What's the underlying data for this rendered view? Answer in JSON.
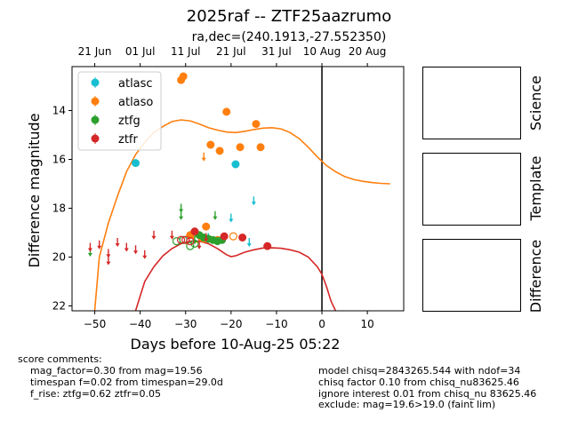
{
  "title": "2025raf -- ZTF25aazrumo",
  "subtitle": "ra,dec=(240.1913,-27.552350)",
  "side_panels": [
    "Science",
    "Template",
    "Difference"
  ],
  "comments_left": {
    "heading": "score comments:",
    "lines": [
      "mag_factor=0.30 from mag=19.56",
      "timespan f=0.02 from timespan=29.0d",
      "f_rise: ztfg=0.62 ztfr=0.05"
    ]
  },
  "comments_right": [
    "model chisq=2843265.544 with ndof=34",
    "chisq factor 0.10 from chisq_nu83625.46",
    "ignore interest 0.01 from chisq_nu 83625.46",
    "exclude: mag=19.6>19.0 (faint lim)"
  ],
  "colors": {
    "atlasc": "#17becf",
    "atlaso": "#ff7f0e",
    "ztfg": "#2ca02c",
    "ztfr": "#d62728"
  },
  "chart_data": {
    "type": "scatter",
    "xlabel": "Days before 10-Aug-25 05:22",
    "ylabel": "Difference magnitude",
    "xlim": [
      -55,
      18
    ],
    "ylim": [
      22.2,
      12.2
    ],
    "x_ticks": [
      -50,
      -40,
      -30,
      -20,
      -10,
      0,
      10
    ],
    "y_ticks": [
      14,
      16,
      18,
      20,
      22
    ],
    "top_axis_ticks": [
      {
        "x": -50,
        "label": "21 Jun"
      },
      {
        "x": -40,
        "label": "01 Jul"
      },
      {
        "x": -30,
        "label": "11 Jul"
      },
      {
        "x": -20,
        "label": "21 Jul"
      },
      {
        "x": -10,
        "label": "31 Jul"
      },
      {
        "x": 0,
        "label": "10 Aug"
      },
      {
        "x": 10,
        "label": "20 Aug"
      }
    ],
    "vline_x": 0,
    "legend_position": "top-left",
    "series": [
      {
        "name": "atlasc",
        "color": "#17becf",
        "detections": [
          {
            "x": -41,
            "y": 16.15
          },
          {
            "x": -19,
            "y": 16.2
          }
        ],
        "upper_limits": [
          {
            "x": -25,
            "y": 19.2
          },
          {
            "x": -20,
            "y": 18.4
          },
          {
            "x": -16,
            "y": 19.4
          },
          {
            "x": -15,
            "y": 17.7
          }
        ],
        "open": []
      },
      {
        "name": "atlaso",
        "color": "#ff7f0e",
        "detections": [
          {
            "x": -30.5,
            "y": 12.6
          },
          {
            "x": -31,
            "y": 12.75
          },
          {
            "x": -21,
            "y": 14.05
          },
          {
            "x": -14.5,
            "y": 14.55
          },
          {
            "x": -24.5,
            "y": 15.4
          },
          {
            "x": -18,
            "y": 15.5
          },
          {
            "x": -13.5,
            "y": 15.5
          },
          {
            "x": -22.5,
            "y": 15.65
          },
          {
            "x": -29,
            "y": 19.1
          },
          {
            "x": -26.5,
            "y": 19.2
          },
          {
            "x": -25.5,
            "y": 18.75
          },
          {
            "x": -26,
            "y": 19.25
          },
          {
            "x": -23,
            "y": 19.3
          }
        ],
        "upper_limits": [
          {
            "x": -26,
            "y": 15.9
          }
        ],
        "open": [
          {
            "x": -19.5,
            "y": 19.15
          },
          {
            "x": -27.5,
            "y": 19.25
          }
        ]
      },
      {
        "name": "ztfg",
        "color": "#2ca02c",
        "detections": [
          {
            "x": -27,
            "y": 19.1
          },
          {
            "x": -26,
            "y": 19.2
          },
          {
            "x": -25,
            "y": 19.25
          },
          {
            "x": -24,
            "y": 19.3
          },
          {
            "x": -23,
            "y": 19.35
          },
          {
            "x": -22,
            "y": 19.3
          }
        ],
        "upper_limits": [
          {
            "x": -51,
            "y": 19.8
          },
          {
            "x": -31,
            "y": 18.0
          },
          {
            "x": -31,
            "y": 18.3
          },
          {
            "x": -23.5,
            "y": 18.3
          },
          {
            "x": -28,
            "y": 19.3
          }
        ],
        "open": [
          {
            "x": -32,
            "y": 19.35
          },
          {
            "x": -30.5,
            "y": 19.3
          },
          {
            "x": -29,
            "y": 19.55
          },
          {
            "x": -28,
            "y": 19.45
          }
        ]
      },
      {
        "name": "ztfr",
        "color": "#d62728",
        "detections": [
          {
            "x": -28,
            "y": 18.95
          },
          {
            "x": -21.5,
            "y": 19.15
          },
          {
            "x": -17.5,
            "y": 19.2
          },
          {
            "x": -12,
            "y": 19.55
          }
        ],
        "upper_limits": [
          {
            "x": -51,
            "y": 19.6
          },
          {
            "x": -49,
            "y": 19.5
          },
          {
            "x": -47,
            "y": 19.85
          },
          {
            "x": -47,
            "y": 20.15
          },
          {
            "x": -45,
            "y": 19.4
          },
          {
            "x": -43,
            "y": 19.6
          },
          {
            "x": -41,
            "y": 19.7
          },
          {
            "x": -39,
            "y": 19.9
          },
          {
            "x": -37,
            "y": 19.1
          },
          {
            "x": -33,
            "y": 19.1
          },
          {
            "x": -27,
            "y": 19.5
          },
          {
            "x": -25.5,
            "y": 19.2
          }
        ],
        "open": [
          {
            "x": -31,
            "y": 19.3
          },
          {
            "x": -30,
            "y": 19.3
          },
          {
            "x": -29,
            "y": 19.35
          }
        ]
      }
    ],
    "model_curves": [
      {
        "name": "atlaso",
        "color": "#ff7f0e",
        "points": [
          [
            -50,
            22.2
          ],
          [
            -49,
            20.0
          ],
          [
            -47,
            18.6
          ],
          [
            -45,
            17.5
          ],
          [
            -43,
            16.5
          ],
          [
            -41,
            15.8
          ],
          [
            -39,
            15.3
          ],
          [
            -37,
            14.9
          ],
          [
            -35,
            14.65
          ],
          [
            -33,
            14.45
          ],
          [
            -31,
            14.38
          ],
          [
            -29,
            14.42
          ],
          [
            -27,
            14.55
          ],
          [
            -25,
            14.7
          ],
          [
            -23,
            14.8
          ],
          [
            -21,
            14.88
          ],
          [
            -19,
            14.9
          ],
          [
            -17,
            14.85
          ],
          [
            -15,
            14.78
          ],
          [
            -13,
            14.72
          ],
          [
            -11,
            14.7
          ],
          [
            -9,
            14.75
          ],
          [
            -7,
            14.9
          ],
          [
            -5,
            15.15
          ],
          [
            -3,
            15.5
          ],
          [
            -1,
            15.9
          ],
          [
            1,
            16.25
          ],
          [
            3,
            16.5
          ],
          [
            5,
            16.7
          ],
          [
            7,
            16.82
          ],
          [
            9,
            16.9
          ],
          [
            11,
            16.95
          ],
          [
            13,
            16.98
          ],
          [
            15,
            17.0
          ]
        ]
      },
      {
        "name": "ztfr",
        "color": "#d62728",
        "points": [
          [
            -41,
            22.2
          ],
          [
            -40,
            21.6
          ],
          [
            -39,
            21.0
          ],
          [
            -37,
            20.4
          ],
          [
            -35,
            19.95
          ],
          [
            -33,
            19.65
          ],
          [
            -31,
            19.45
          ],
          [
            -29,
            19.35
          ],
          [
            -27,
            19.35
          ],
          [
            -25,
            19.45
          ],
          [
            -23,
            19.65
          ],
          [
            -21,
            19.9
          ],
          [
            -20,
            19.98
          ],
          [
            -19,
            19.95
          ],
          [
            -17,
            19.8
          ],
          [
            -15,
            19.7
          ],
          [
            -13,
            19.63
          ],
          [
            -11,
            19.62
          ],
          [
            -9,
            19.64
          ],
          [
            -7,
            19.7
          ],
          [
            -5,
            19.8
          ],
          [
            -3,
            20.0
          ],
          [
            -1,
            20.4
          ],
          [
            0,
            20.7
          ],
          [
            1,
            21.2
          ],
          [
            2,
            21.8
          ],
          [
            3,
            22.2
          ]
        ]
      }
    ]
  }
}
